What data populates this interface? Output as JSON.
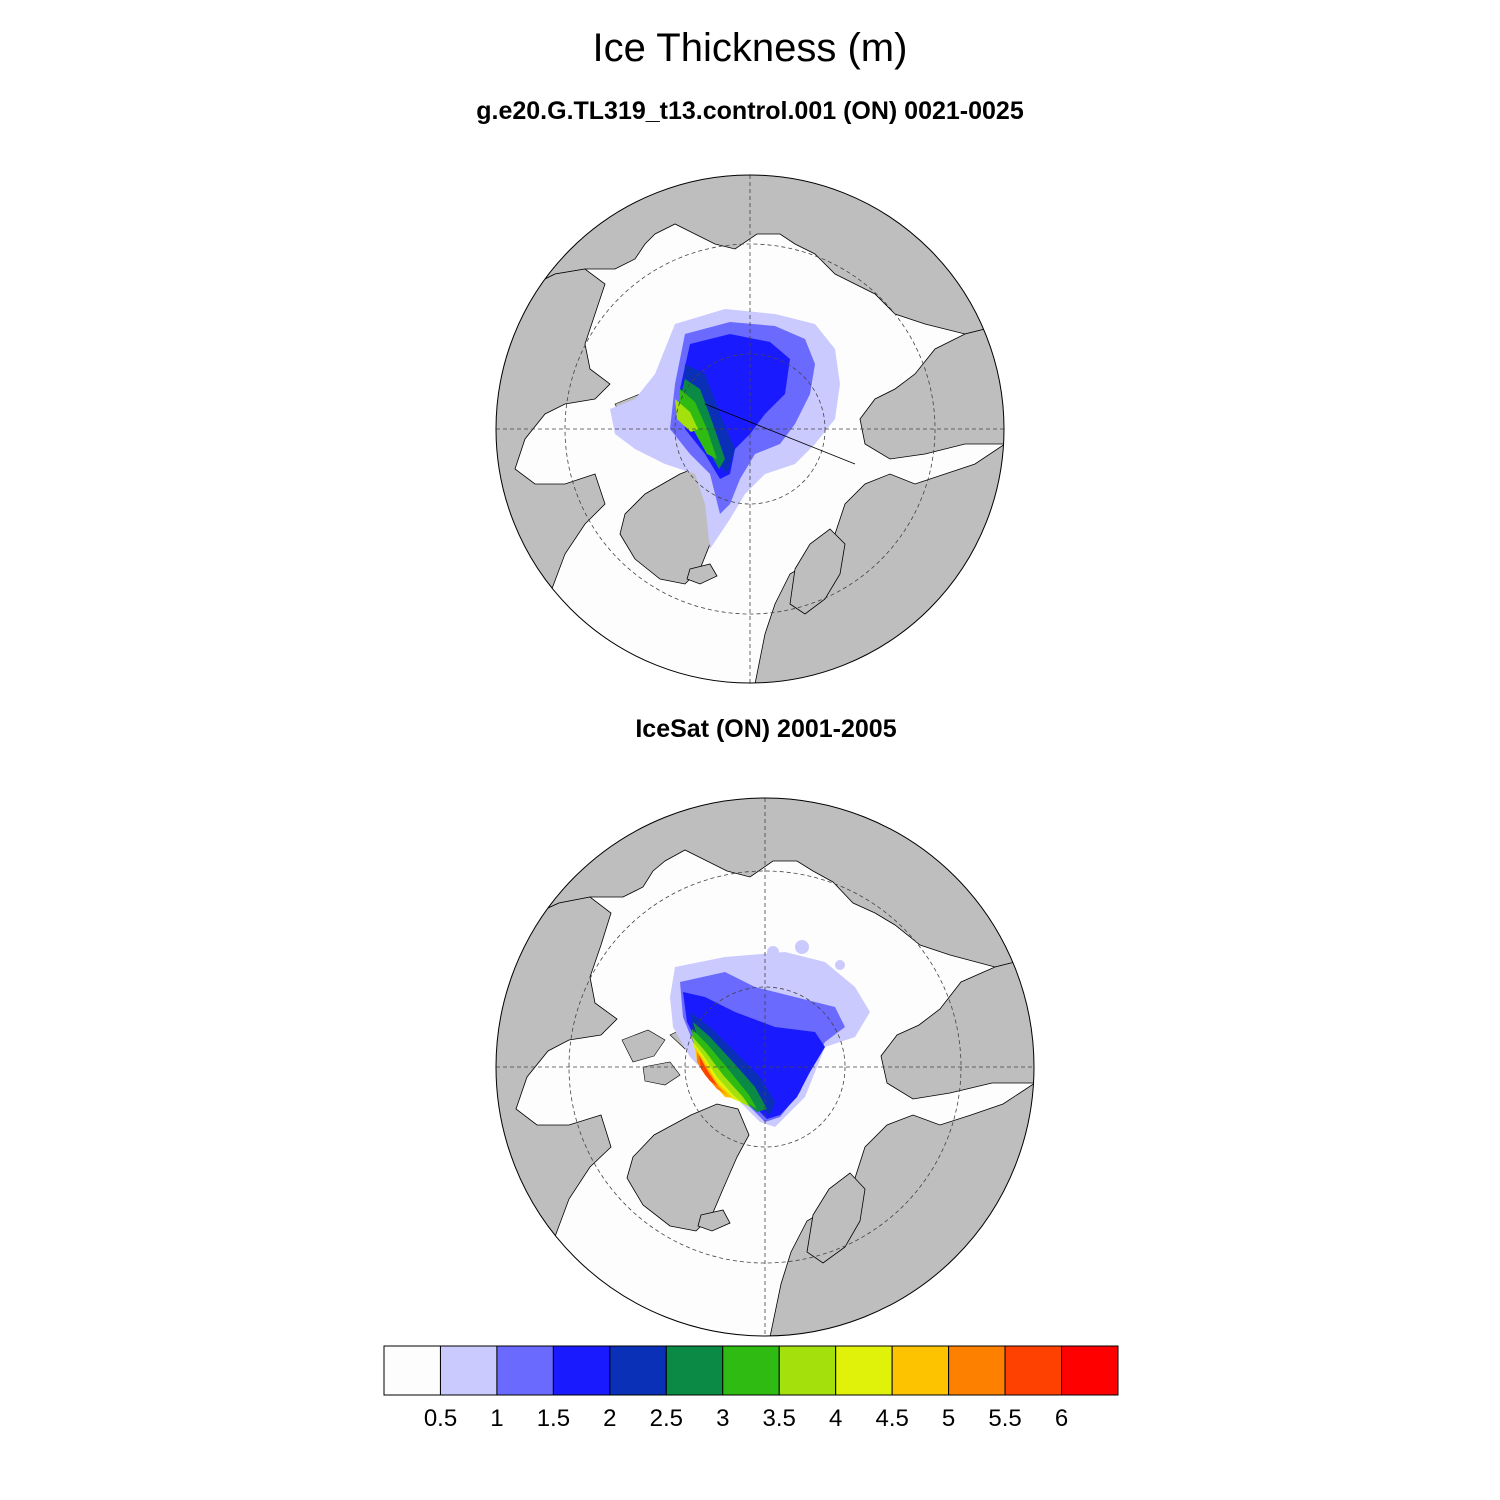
{
  "title": "Ice Thickness (m)",
  "panels": [
    {
      "title": "g.e20.G.TL319_t13.control.001 (ON) 0021-0025"
    },
    {
      "title": "IceSat (ON) 2001-2005"
    }
  ],
  "colorbar": {
    "labels": [
      "0.5",
      "1",
      "1.5",
      "2",
      "2.5",
      "3",
      "3.5",
      "4",
      "4.5",
      "5",
      "5.5",
      "6"
    ],
    "colors": [
      "#fdfdfd",
      "#cacafe",
      "#6a6aff",
      "#1a1aff",
      "#0b30b8",
      "#0a8a45",
      "#30bb12",
      "#a4e10c",
      "#e1f20a",
      "#fec300",
      "#fe8000",
      "#fe4000",
      "#fe0000"
    ]
  },
  "colors": {
    "ocean": "#fdfdfd",
    "land": "#bebebe",
    "coast": "#000000"
  }
}
